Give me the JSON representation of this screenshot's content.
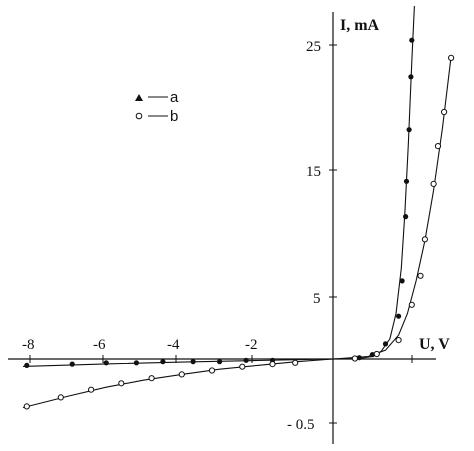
{
  "chart_data": {
    "type": "scatter",
    "xlabel": "U, V",
    "ylabel": "I, mA",
    "x_ticks": [
      "-8",
      "-6",
      "-4",
      "-2"
    ],
    "y_ticks": [
      "25",
      "15",
      "5",
      "- 0.5"
    ],
    "legend_position": "top-left",
    "grid": false,
    "series": [
      {
        "name": "a",
        "marker": "filled-circle",
        "color": "#111111",
        "points": [
          [
            -8.1,
            -0.05
          ],
          [
            -6.9,
            -0.04
          ],
          [
            -6.0,
            -0.03
          ],
          [
            -5.2,
            -0.03
          ],
          [
            -4.5,
            -0.02
          ],
          [
            -3.7,
            -0.02
          ],
          [
            -3.0,
            -0.02
          ],
          [
            -2.3,
            -0.01
          ],
          [
            -1.6,
            -0.01
          ],
          [
            0.3,
            0.1
          ],
          [
            0.45,
            0.35
          ],
          [
            0.6,
            1.2
          ],
          [
            0.75,
            3.4
          ],
          [
            0.79,
            6.2
          ],
          [
            0.83,
            11.3
          ],
          [
            0.84,
            14.1
          ],
          [
            0.87,
            18.2
          ],
          [
            0.89,
            22.4
          ],
          [
            0.9,
            25.3
          ]
        ],
        "curve": [
          [
            -8.2,
            -0.058
          ],
          [
            -6,
            -0.038
          ],
          [
            -4,
            -0.024
          ],
          [
            -2,
            -0.012
          ],
          [
            0,
            0
          ],
          [
            0.3,
            0.05
          ],
          [
            0.45,
            0.2
          ],
          [
            0.55,
            0.6
          ],
          [
            0.65,
            1.6
          ],
          [
            0.72,
            3.6
          ],
          [
            0.78,
            7.2
          ],
          [
            0.82,
            11.5
          ],
          [
            0.86,
            17.0
          ],
          [
            0.9,
            23.6
          ],
          [
            0.93,
            29.2
          ]
        ]
      },
      {
        "name": "b",
        "marker": "open-circle",
        "color": "#111111",
        "points": [
          [
            -8.1,
            -0.37
          ],
          [
            -7.2,
            -0.3
          ],
          [
            -6.4,
            -0.24
          ],
          [
            -5.6,
            -0.19
          ],
          [
            -4.8,
            -0.15
          ],
          [
            -4.0,
            -0.12
          ],
          [
            -3.2,
            -0.09
          ],
          [
            -2.4,
            -0.06
          ],
          [
            -1.6,
            -0.04
          ],
          [
            -1.0,
            -0.03
          ],
          [
            0.25,
            0.04
          ],
          [
            0.5,
            0.4
          ],
          [
            0.75,
            1.5
          ],
          [
            0.9,
            4.3
          ],
          [
            1.0,
            6.6
          ],
          [
            1.05,
            9.5
          ],
          [
            1.15,
            13.9
          ],
          [
            1.2,
            16.9
          ],
          [
            1.27,
            19.6
          ],
          [
            1.35,
            23.9
          ]
        ],
        "curve": [
          [
            -8.2,
            -0.38
          ],
          [
            -7,
            -0.29
          ],
          [
            -6,
            -0.22
          ],
          [
            -5,
            -0.165
          ],
          [
            -4,
            -0.12
          ],
          [
            -3,
            -0.08
          ],
          [
            -2,
            -0.05
          ],
          [
            -1,
            -0.022
          ],
          [
            0,
            0
          ],
          [
            0.4,
            0.2
          ],
          [
            0.6,
            0.7
          ],
          [
            0.75,
            1.9
          ],
          [
            0.85,
            3.6
          ],
          [
            0.95,
            6.2
          ],
          [
            1.05,
            9.4
          ],
          [
            1.15,
            13.4
          ],
          [
            1.25,
            18.3
          ],
          [
            1.35,
            24.0
          ]
        ]
      }
    ]
  }
}
